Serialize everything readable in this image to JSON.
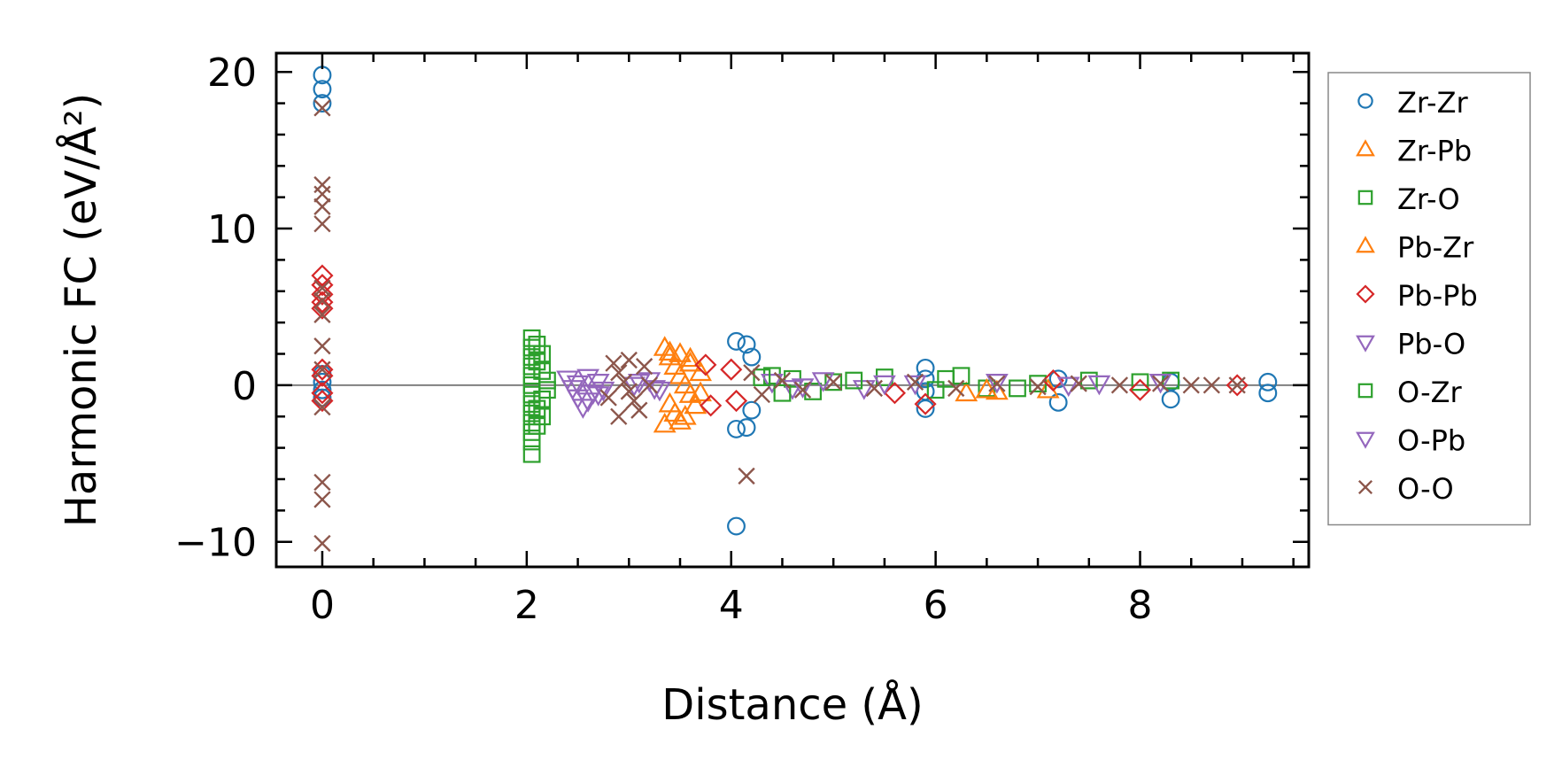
{
  "chart_data": {
    "type": "scatter",
    "xlabel": "Distance (Å)",
    "ylabel": "Harmonic FC (eV/Å²)",
    "xlim": [
      -0.45,
      9.65
    ],
    "ylim": [
      -11.6,
      21.2
    ],
    "x_ticks": [
      0,
      2,
      4,
      6,
      8
    ],
    "y_ticks": [
      -10,
      0,
      10,
      20
    ],
    "x_tick_labels": [
      "0",
      "2",
      "4",
      "6",
      "8"
    ],
    "y_tick_labels": [
      "−10",
      "0",
      "10",
      "20"
    ],
    "zero_line": true,
    "grid": false,
    "legend_position": "outside-right",
    "series": [
      {
        "name": "Zr-Zr",
        "marker": "circle",
        "color": "#1f77b4",
        "points": [
          [
            0,
            19.8
          ],
          [
            0,
            18.9
          ],
          [
            0,
            18.0
          ],
          [
            0,
            0.7
          ],
          [
            0,
            0.2
          ],
          [
            0,
            -0.3
          ],
          [
            0,
            -0.8
          ],
          [
            4.05,
            2.8
          ],
          [
            4.05,
            -2.8
          ],
          [
            4.05,
            -9.0
          ],
          [
            4.15,
            2.6
          ],
          [
            4.15,
            -2.7
          ],
          [
            4.2,
            1.8
          ],
          [
            4.2,
            -1.6
          ],
          [
            5.9,
            1.1
          ],
          [
            5.9,
            0.4
          ],
          [
            5.9,
            -0.4
          ],
          [
            5.9,
            -1.5
          ],
          [
            7.2,
            0.4
          ],
          [
            7.2,
            -1.1
          ],
          [
            8.3,
            0.2
          ],
          [
            8.3,
            -0.9
          ],
          [
            9.25,
            0.2
          ],
          [
            9.25,
            -0.5
          ]
        ]
      },
      {
        "name": "Zr-Pb",
        "marker": "triangle-up",
        "color": "#ff7f0e",
        "points": [
          [
            3.35,
            2.4
          ],
          [
            3.4,
            1.8
          ],
          [
            3.45,
            1.2
          ],
          [
            3.5,
            0.6
          ],
          [
            3.55,
            0.0
          ],
          [
            3.6,
            -0.6
          ],
          [
            3.4,
            -1.2
          ],
          [
            3.45,
            -1.8
          ],
          [
            3.35,
            -2.5
          ],
          [
            3.5,
            2.0
          ],
          [
            3.55,
            -2.0
          ],
          [
            3.6,
            1.4
          ],
          [
            3.65,
            -1.3
          ],
          [
            3.7,
            0.8
          ],
          [
            6.3,
            -0.5
          ],
          [
            6.6,
            -0.4
          ],
          [
            7.1,
            -0.3
          ]
        ]
      },
      {
        "name": "Zr-O",
        "marker": "square",
        "color": "#2ca02c",
        "points": [
          [
            2.05,
            3.0
          ],
          [
            2.05,
            2.4
          ],
          [
            2.05,
            1.8
          ],
          [
            2.05,
            1.2
          ],
          [
            2.05,
            0.6
          ],
          [
            2.05,
            0.0
          ],
          [
            2.05,
            -0.6
          ],
          [
            2.05,
            -1.2
          ],
          [
            2.05,
            -1.8
          ],
          [
            2.05,
            -2.4
          ],
          [
            2.05,
            -3.0
          ],
          [
            2.05,
            -3.6
          ],
          [
            2.05,
            -4.4
          ],
          [
            2.1,
            1.5
          ],
          [
            2.1,
            -1.5
          ],
          [
            2.15,
            0.9
          ],
          [
            2.15,
            -0.9
          ],
          [
            2.2,
            0.3
          ],
          [
            2.2,
            -0.3
          ],
          [
            4.4,
            0.6
          ],
          [
            4.6,
            0.4
          ],
          [
            4.8,
            -0.4
          ],
          [
            5.0,
            0.2
          ],
          [
            5.5,
            0.5
          ],
          [
            6.0,
            -0.3
          ],
          [
            6.25,
            0.6
          ],
          [
            6.5,
            -0.2
          ],
          [
            7.0,
            0.1
          ],
          [
            7.5,
            0.3
          ],
          [
            8.0,
            0.2
          ],
          [
            8.3,
            0.3
          ]
        ]
      },
      {
        "name": "Pb-Zr",
        "marker": "triangle-up",
        "color": "#ff7f0e",
        "points": [
          [
            3.4,
            2.1
          ],
          [
            3.5,
            -2.3
          ],
          [
            3.6,
            1.7
          ],
          [
            3.7,
            -0.5
          ],
          [
            6.5,
            -0.3
          ]
        ]
      },
      {
        "name": "Pb-Pb",
        "marker": "diamond",
        "color": "#d62728",
        "points": [
          [
            0,
            7.0
          ],
          [
            0,
            6.4
          ],
          [
            0,
            5.8
          ],
          [
            0,
            5.3
          ],
          [
            0,
            4.9
          ],
          [
            0,
            1.0
          ],
          [
            0,
            0.6
          ],
          [
            0,
            -0.5
          ],
          [
            0,
            -1.0
          ],
          [
            3.75,
            1.3
          ],
          [
            3.8,
            -1.3
          ],
          [
            4.0,
            1.0
          ],
          [
            4.05,
            -1.0
          ],
          [
            5.6,
            -0.5
          ],
          [
            5.9,
            -1.2
          ],
          [
            7.15,
            0.3
          ],
          [
            8.0,
            -0.3
          ],
          [
            8.95,
            0.0
          ]
        ]
      },
      {
        "name": "Pb-O",
        "marker": "triangle-down",
        "color": "#9467bd",
        "points": [
          [
            2.4,
            0.4
          ],
          [
            2.45,
            -0.2
          ],
          [
            2.5,
            -0.8
          ],
          [
            2.55,
            -1.4
          ],
          [
            2.6,
            0.5
          ],
          [
            2.65,
            -0.5
          ],
          [
            2.7,
            0.2
          ],
          [
            2.75,
            -0.3
          ],
          [
            3.05,
            0.0
          ],
          [
            3.2,
            0.3
          ],
          [
            3.3,
            -0.3
          ],
          [
            4.4,
            0.2
          ],
          [
            4.6,
            -0.2
          ],
          [
            4.9,
            0.3
          ],
          [
            5.3,
            -0.2
          ],
          [
            5.8,
            0.1
          ],
          [
            6.6,
            0.2
          ],
          [
            7.6,
            0.1
          ],
          [
            8.2,
            0.2
          ]
        ]
      },
      {
        "name": "O-Zr",
        "marker": "square",
        "color": "#2ca02c",
        "points": [
          [
            2.1,
            2.6
          ],
          [
            2.1,
            -2.6
          ],
          [
            2.15,
            2.0
          ],
          [
            2.15,
            -2.0
          ],
          [
            4.3,
            0.5
          ],
          [
            4.5,
            -0.5
          ],
          [
            5.2,
            0.3
          ],
          [
            6.1,
            0.4
          ],
          [
            6.8,
            -0.2
          ]
        ]
      },
      {
        "name": "O-Pb",
        "marker": "triangle-down",
        "color": "#9467bd",
        "points": [
          [
            2.5,
            0.1
          ],
          [
            2.6,
            -1.0
          ],
          [
            2.7,
            -0.6
          ],
          [
            3.1,
            0.2
          ],
          [
            3.25,
            -0.2
          ],
          [
            4.7,
            -0.1
          ],
          [
            5.5,
            0.1
          ],
          [
            7.3,
            0.0
          ]
        ]
      },
      {
        "name": "O-O",
        "marker": "cross",
        "color": "#8c564b",
        "points": [
          [
            0,
            17.7
          ],
          [
            0,
            12.8
          ],
          [
            0,
            12.2
          ],
          [
            0,
            11.4
          ],
          [
            0,
            10.3
          ],
          [
            0,
            6.2
          ],
          [
            0,
            5.4
          ],
          [
            0,
            4.5
          ],
          [
            0,
            2.5
          ],
          [
            0,
            1.0
          ],
          [
            0,
            -1.4
          ],
          [
            0,
            -6.2
          ],
          [
            0,
            -7.3
          ],
          [
            0,
            -10.1
          ],
          [
            2.85,
            1.4
          ],
          [
            2.9,
            0.8
          ],
          [
            2.95,
            0.2
          ],
          [
            3.0,
            -0.4
          ],
          [
            3.05,
            -1.0
          ],
          [
            3.1,
            -1.6
          ],
          [
            2.9,
            -2.0
          ],
          [
            3.15,
            1.2
          ],
          [
            3.2,
            0.0
          ],
          [
            2.8,
            -0.8
          ],
          [
            3.0,
            1.6
          ],
          [
            4.15,
            -5.8
          ],
          [
            4.2,
            0.8
          ],
          [
            4.3,
            -0.6
          ],
          [
            4.5,
            0.3
          ],
          [
            4.7,
            -0.3
          ],
          [
            5.0,
            0.2
          ],
          [
            5.4,
            -0.2
          ],
          [
            5.8,
            0.2
          ],
          [
            6.2,
            -0.2
          ],
          [
            6.6,
            0.1
          ],
          [
            7.0,
            -0.1
          ],
          [
            7.4,
            0.1
          ],
          [
            7.8,
            0.0
          ],
          [
            8.2,
            0.1
          ],
          [
            8.5,
            0.0
          ],
          [
            8.7,
            0.0
          ],
          [
            8.95,
            0.0
          ]
        ]
      }
    ]
  }
}
